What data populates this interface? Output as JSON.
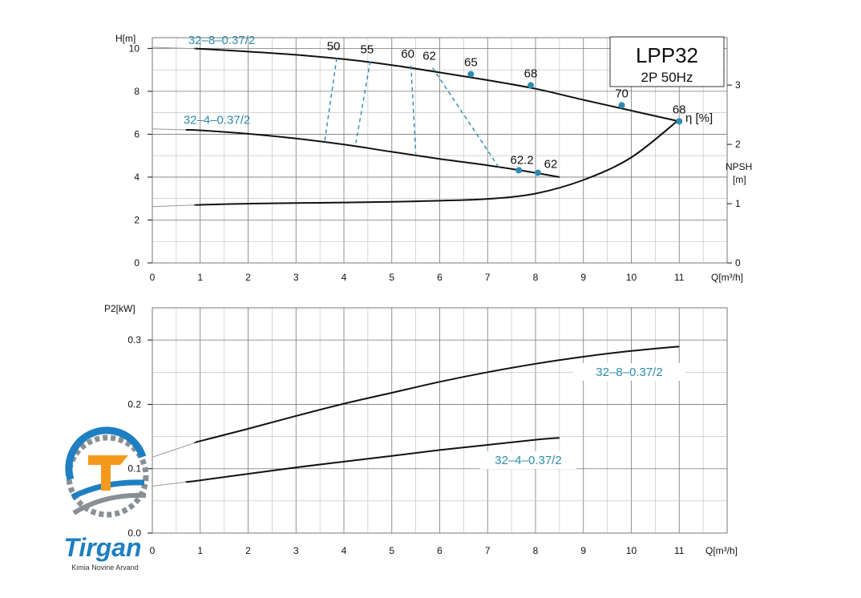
{
  "colors": {
    "accent": "#2e8bb0",
    "curve": "#111111",
    "grid": "#777777",
    "logo_orange": "#f39a1d",
    "logo_blue": "#1e7fc2",
    "logo_gray": "#8a8f96"
  },
  "title_box": {
    "model": "LPP32",
    "spec": "2P  50Hz"
  },
  "logo": {
    "brand": "Tirgan",
    "tagline": "Kimia Novine Arvand"
  },
  "chart_data": [
    {
      "type": "line",
      "panel": "head",
      "ylabel": "H[m]",
      "xlabel": "Q[m³/h]",
      "y2label": "NPSH",
      "y2unit": "[m]",
      "xlim": [
        0,
        12
      ],
      "ylim": [
        0,
        10.5
      ],
      "y2lim": [
        0,
        3.8
      ],
      "xticks": [
        "0",
        "1",
        "2",
        "3",
        "4",
        "5",
        "6",
        "7",
        "8",
        "9",
        "10",
        "11"
      ],
      "yticks": [
        "0",
        "2",
        "4",
        "6",
        "8",
        "10"
      ],
      "y2ticks": [
        "0",
        "1",
        "2",
        "3"
      ],
      "grid": true,
      "series": [
        {
          "name": "32–8–0.37/2",
          "x": [
            0,
            1,
            2,
            3,
            4,
            5,
            6,
            7,
            8,
            9,
            10,
            11
          ],
          "y": [
            10.05,
            9.98,
            9.85,
            9.7,
            9.5,
            9.22,
            8.88,
            8.52,
            8.12,
            7.6,
            7.1,
            6.6
          ],
          "faint_from_x": 0,
          "solid_from_x": 0.9
        },
        {
          "name": "32–4–0.37/2",
          "x": [
            0,
            1,
            2,
            3,
            4,
            5,
            6,
            7,
            8,
            8.5
          ],
          "y": [
            6.25,
            6.18,
            6.02,
            5.8,
            5.52,
            5.18,
            4.85,
            4.55,
            4.2,
            4.0
          ],
          "faint_from_x": 0,
          "solid_from_x": 0.7
        },
        {
          "name": "NPSH",
          "axis": "y2",
          "x": [
            0,
            1,
            2,
            3,
            4,
            5,
            6,
            7,
            8,
            9,
            10,
            11
          ],
          "y": [
            0.95,
            0.98,
            1.0,
            1.01,
            1.02,
            1.03,
            1.05,
            1.08,
            1.17,
            1.4,
            1.78,
            2.42
          ],
          "faint_from_x": 0,
          "solid_from_x": 0.9
        }
      ],
      "efficiency_label": "η [%]",
      "efficiency_points": [
        {
          "label": "65",
          "x": 6.65,
          "y": 8.8,
          "dot": true
        },
        {
          "label": "68",
          "x": 7.9,
          "y": 8.28,
          "dot": true
        },
        {
          "label": "70",
          "x": 9.8,
          "y": 7.35,
          "dot": true
        },
        {
          "label": "68",
          "x": 11.0,
          "y": 6.6,
          "dot": true
        },
        {
          "label": "62.2",
          "x": 7.65,
          "y": 4.32,
          "dot": true
        },
        {
          "label": "62",
          "x": 8.05,
          "y": 4.2,
          "dot": true
        }
      ],
      "iso_efficiency_lines": [
        {
          "label": "50",
          "x1": 3.85,
          "y1": 9.55,
          "x2": 3.6,
          "y2": 5.7
        },
        {
          "label": "55",
          "x1": 4.55,
          "y1": 9.4,
          "x2": 4.25,
          "y2": 5.6
        },
        {
          "label": "60",
          "x1": 5.4,
          "y1": 9.2,
          "x2": 5.5,
          "y2": 5.1
        },
        {
          "label": "62",
          "x1": 5.85,
          "y1": 9.1,
          "x2": 7.25,
          "y2": 4.4
        }
      ]
    },
    {
      "type": "line",
      "panel": "power",
      "ylabel": "P2[kW]",
      "xlabel": "Q[m³/h]",
      "xlim": [
        0,
        12
      ],
      "ylim": [
        0,
        0.35
      ],
      "xticks": [
        "0",
        "1",
        "2",
        "3",
        "4",
        "5",
        "6",
        "7",
        "8",
        "9",
        "10",
        "11"
      ],
      "yticks": [
        "0.0",
        "0.1",
        "0.2",
        "0.3"
      ],
      "grid": true,
      "series": [
        {
          "name": "32–8–0.37/2",
          "x": [
            0,
            1,
            2,
            3,
            4,
            5,
            6,
            7,
            8,
            9,
            10,
            11
          ],
          "y": [
            0.118,
            0.143,
            0.162,
            0.182,
            0.201,
            0.218,
            0.235,
            0.25,
            0.263,
            0.274,
            0.283,
            0.29
          ],
          "faint_from_x": 0,
          "solid_from_x": 0.9
        },
        {
          "name": "32–4–0.37/2",
          "x": [
            0,
            1,
            2,
            3,
            4,
            5,
            6,
            7,
            8,
            8.5
          ],
          "y": [
            0.073,
            0.082,
            0.092,
            0.102,
            0.111,
            0.12,
            0.129,
            0.137,
            0.145,
            0.148
          ],
          "faint_from_x": 0,
          "solid_from_x": 0.7
        }
      ]
    }
  ]
}
